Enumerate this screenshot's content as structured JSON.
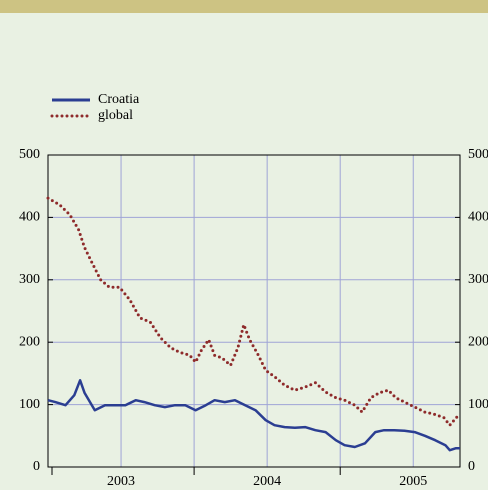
{
  "chart_data": {
    "type": "line",
    "xlim": [
      2003,
      2005.82
    ],
    "xticks": [
      {
        "value": 2003.5,
        "label": "2003"
      },
      {
        "value": 2004.5,
        "label": "2004"
      },
      {
        "value": 2005.5,
        "label": "2005"
      }
    ],
    "xminorticks": [
      2004,
      2005
    ],
    "ylim": [
      0,
      500
    ],
    "yticks": [
      0,
      100,
      200,
      300,
      400,
      500
    ],
    "y2lim": [
      0,
      500
    ],
    "y2ticks": [
      0,
      100,
      200,
      300,
      400,
      500
    ],
    "grid": true,
    "legend": "top-left",
    "series": [
      {
        "name": "Croatia",
        "color": "#2b3e92",
        "style": "solid",
        "x": [
          2003.0,
          2003.05,
          2003.12,
          2003.18,
          2003.22,
          2003.25,
          2003.32,
          2003.39,
          2003.46,
          2003.53,
          2003.6,
          2003.66,
          2003.73,
          2003.8,
          2003.87,
          2003.94,
          2004.01,
          2004.08,
          2004.14,
          2004.21,
          2004.28,
          2004.35,
          2004.42,
          2004.49,
          2004.55,
          2004.62,
          2004.69,
          2004.76,
          2004.83,
          2004.9,
          2004.97,
          2005.03,
          2005.1,
          2005.17,
          2005.24,
          2005.3,
          2005.37,
          2005.44,
          2005.51,
          2005.58,
          2005.65,
          2005.72,
          2005.75,
          2005.79,
          2005.82
        ],
        "values": [
          107,
          104,
          99,
          115,
          139,
          119,
          91,
          99,
          99,
          99,
          107,
          104,
          99,
          96,
          99,
          99,
          91,
          99,
          107,
          104,
          107,
          99,
          91,
          75,
          67,
          64,
          63,
          64,
          59,
          56,
          43,
          35,
          32,
          38,
          56,
          59,
          59,
          58,
          56,
          50,
          43,
          35,
          27,
          30,
          30
        ]
      },
      {
        "name": "global",
        "color": "#8e2b2b",
        "style": "dotted",
        "x": [
          2003.0,
          2003.08,
          2003.15,
          2003.21,
          2003.25,
          2003.3,
          2003.36,
          2003.42,
          2003.49,
          2003.56,
          2003.63,
          2003.7,
          2003.77,
          2003.84,
          2003.9,
          2003.97,
          2004.01,
          2004.05,
          2004.1,
          2004.14,
          2004.19,
          2004.25,
          2004.3,
          2004.34,
          2004.38,
          2004.44,
          2004.49,
          2004.56,
          2004.62,
          2004.69,
          2004.76,
          2004.83,
          2004.9,
          2004.97,
          2005.03,
          2005.1,
          2005.15,
          2005.21,
          2005.27,
          2005.33,
          2005.38,
          2005.44,
          2005.51,
          2005.58,
          2005.64,
          2005.71,
          2005.75,
          2005.81
        ],
        "values": [
          431,
          420,
          404,
          380,
          352,
          328,
          300,
          288,
          288,
          268,
          239,
          232,
          207,
          191,
          184,
          179,
          168,
          187,
          204,
          179,
          175,
          163,
          191,
          228,
          204,
          179,
          155,
          143,
          131,
          123,
          128,
          135,
          120,
          111,
          107,
          99,
          88,
          111,
          119,
          123,
          111,
          104,
          96,
          88,
          85,
          79,
          67,
          83
        ]
      }
    ]
  }
}
